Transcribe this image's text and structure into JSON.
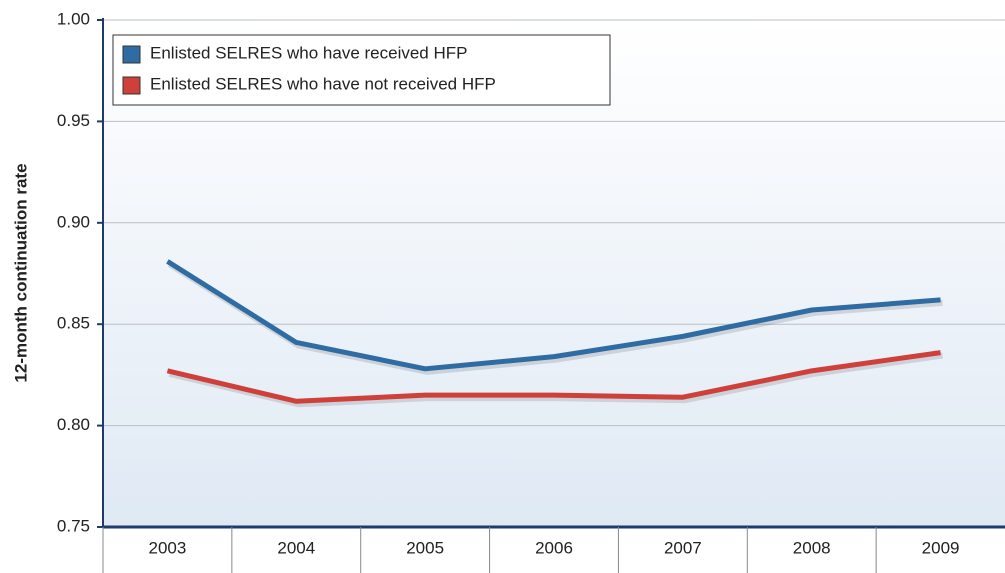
{
  "chart_data": {
    "type": "line",
    "y_label": "12-month continuation rate",
    "categories": [
      "2003",
      "2004",
      "2005",
      "2006",
      "2007",
      "2008",
      "2009"
    ],
    "series": [
      {
        "name": "Enlisted SELRES who have received HFP",
        "color": "#2f6ca3",
        "values": [
          0.881,
          0.841,
          0.828,
          0.834,
          0.844,
          0.857,
          0.862
        ]
      },
      {
        "name": "Enlisted SELRES who have not received HFP",
        "color": "#d0403a",
        "values": [
          0.827,
          0.812,
          0.815,
          0.815,
          0.814,
          0.827,
          0.836
        ]
      }
    ],
    "ylim": [
      0.75,
      1.0
    ],
    "yticks": [
      0.75,
      {
        "value": 0.8,
        "label": "0.80"
      },
      0.85,
      {
        "value": 0.9,
        "label": "0.90"
      },
      0.95,
      {
        "value": 1.0,
        "label": "1.00"
      }
    ],
    "grid": true
  }
}
